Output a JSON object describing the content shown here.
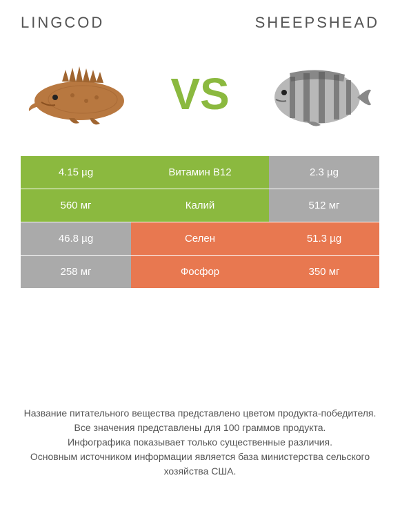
{
  "titles": {
    "left": "Lingcod",
    "right": "Sheepshead"
  },
  "vs": "VS",
  "colors": {
    "green": "#8bb93f",
    "orange": "#e87850",
    "gray": "#aaaaaa",
    "text": "#555555",
    "white": "#ffffff"
  },
  "rows": [
    {
      "left_value": "4.15 µg",
      "left_color": "green",
      "label": "Витамин B12",
      "label_color": "green",
      "right_value": "2.3 µg",
      "right_color": "gray"
    },
    {
      "left_value": "560 мг",
      "left_color": "green",
      "label": "Калий",
      "label_color": "green",
      "right_value": "512 мг",
      "right_color": "gray"
    },
    {
      "left_value": "46.8 µg",
      "left_color": "gray",
      "label": "Селен",
      "label_color": "orange",
      "right_value": "51.3 µg",
      "right_color": "orange"
    },
    {
      "left_value": "258 мг",
      "left_color": "gray",
      "label": "Фосфор",
      "label_color": "orange",
      "right_value": "350 мг",
      "right_color": "orange"
    }
  ],
  "footer": {
    "line1": "Название питательного вещества представлено цветом продукта-победителя.",
    "line2": "Все значения представлены для 100 граммов продукта.",
    "line3": "Инфографика показывает только существенные различия.",
    "line4": "Основным источником информации является база министерства сельского хозяйства США."
  }
}
